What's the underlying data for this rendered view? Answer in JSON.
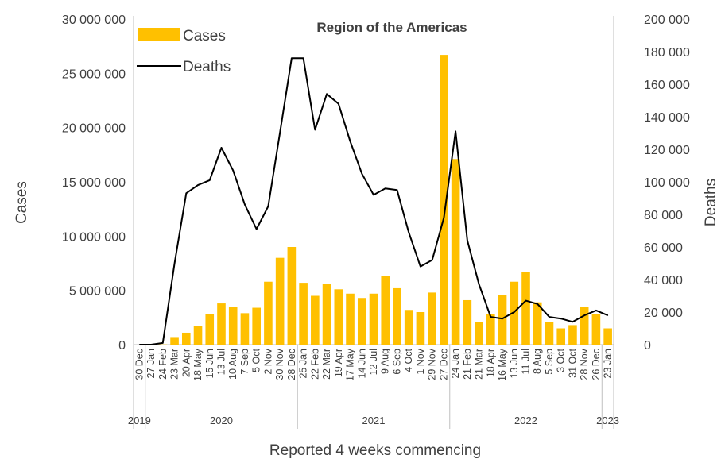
{
  "chart_data": {
    "type": "bar+line",
    "title": "Region of the Americas",
    "xlabel": "Reported 4 weeks commencing",
    "ylabel_left": "Cases",
    "ylabel_right": "Deaths",
    "ylim_left": [
      0,
      30000000
    ],
    "ylim_right": [
      0,
      200000
    ],
    "left_ticks": [
      "0",
      "5 000 000",
      "10 000 000",
      "15 000 000",
      "20 000 000",
      "25 000 000",
      "30 000 000"
    ],
    "right_ticks": [
      "0",
      "20 000",
      "40 000",
      "60 000",
      "80 000",
      "100 000",
      "120 000",
      "140 000",
      "160 000",
      "180 000",
      "200 000"
    ],
    "legend": {
      "position": "top-left",
      "cases_label": "Cases",
      "deaths_label": "Deaths"
    },
    "colors": {
      "bars": "#FFC000",
      "line": "#000000",
      "axis": "#BFBFBF"
    },
    "categories": [
      "30 Dec",
      "27 Jan",
      "24 Feb",
      "23 Mar",
      "20 Apr",
      "18 May",
      "15 Jun",
      "13 Jul",
      "10 Aug",
      "7 Sep",
      "5 Oct",
      "2 Nov",
      "30 Nov",
      "28 Dec",
      "25 Jan",
      "22 Feb",
      "22 Mar",
      "19 Apr",
      "17 May",
      "14 Jun",
      "12 Jul",
      "9 Aug",
      "6 Sep",
      "4 Oct",
      "1 Nov",
      "29 Nov",
      "27 Dec",
      "24 Jan",
      "21 Feb",
      "21 Mar",
      "18 Apr",
      "16 May",
      "13 Jun",
      "11 Jul",
      "8 Aug",
      "5 Sep",
      "3 Oct",
      "31 Oct",
      "28 Nov",
      "26 Dec",
      "23 Jan"
    ],
    "years": [
      {
        "label": "2019",
        "start": 0,
        "end": 0
      },
      {
        "label": "2020",
        "start": 1,
        "end": 13
      },
      {
        "label": "2021",
        "start": 14,
        "end": 26
      },
      {
        "label": "2022",
        "start": 27,
        "end": 39
      },
      {
        "label": "2023",
        "start": 40,
        "end": 40
      }
    ],
    "series": [
      {
        "name": "Cases",
        "kind": "bar",
        "axis": "left",
        "values": [
          0,
          5000,
          20000,
          700000,
          1100000,
          1700000,
          2800000,
          3800000,
          3500000,
          2900000,
          3400000,
          5800000,
          8000000,
          9000000,
          5700000,
          4500000,
          5600000,
          5100000,
          4700000,
          4300000,
          4700000,
          6300000,
          5200000,
          3200000,
          3000000,
          4800000,
          26700000,
          17100000,
          4100000,
          2100000,
          2800000,
          4600000,
          5800000,
          6700000,
          3900000,
          2100000,
          1500000,
          1800000,
          3500000,
          2800000,
          1500000
        ]
      },
      {
        "name": "Deaths",
        "kind": "line",
        "axis": "right",
        "values": [
          0,
          0,
          1000,
          50000,
          93000,
          98000,
          101000,
          121000,
          107000,
          86000,
          71000,
          85000,
          130000,
          176000,
          176000,
          132000,
          154000,
          148000,
          125000,
          105000,
          92000,
          96000,
          95000,
          69000,
          48000,
          52000,
          78000,
          131000,
          64000,
          37000,
          17000,
          16000,
          20000,
          27000,
          25000,
          17000,
          16000,
          14000,
          18000,
          21000,
          18000
        ]
      }
    ]
  }
}
